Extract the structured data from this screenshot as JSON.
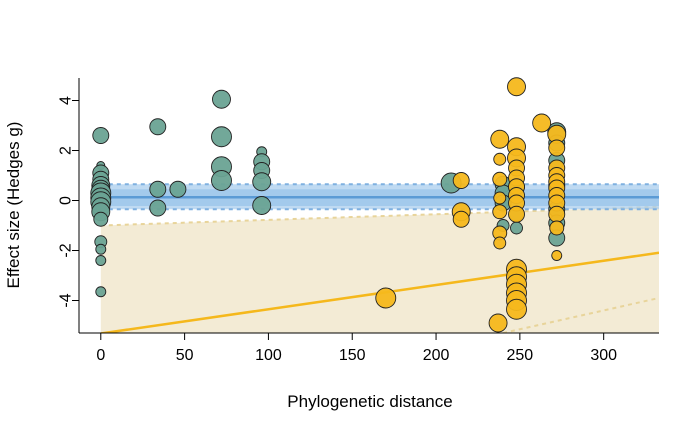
{
  "chart_data": {
    "type": "scatter",
    "xlabel": "Phylogenetic distance",
    "ylabel": "Effect size (Hedges g)",
    "xlim": [
      -13,
      333
    ],
    "ylim": [
      -5.3,
      4.9
    ],
    "x_ticks": [
      0,
      50,
      100,
      150,
      200,
      250,
      300
    ],
    "y_ticks": [
      -4,
      -2,
      0,
      2,
      4
    ],
    "colors": {
      "teal": "#6aa394",
      "gold": "#f5b81c",
      "blue_fit": "#5b9bd5",
      "blue_band": "#a9cdee",
      "gold_fit": "#f5b81c",
      "gold_band": "#f3ebd5"
    },
    "fits": [
      {
        "color": "blue",
        "slope": 0.0,
        "intercept": 0.13,
        "ci_lower": -0.35,
        "ci_upper": 0.65,
        "ci_band": [
          -0.22,
          0.45
        ]
      },
      {
        "color": "gold",
        "slope": 0.0097,
        "intercept": -5.32,
        "ci_upper_start": -1.0,
        "ci_upper_end": -0.25,
        "ci_lower_line": [
          [
            240,
            -5.3
          ],
          [
            333,
            -3.9
          ]
        ]
      }
    ],
    "series": [
      {
        "color": "teal",
        "points": [
          {
            "x": 0,
            "y": 2.6,
            "r": 8
          },
          {
            "x": 0,
            "y": 1.4,
            "r": 4
          },
          {
            "x": 0,
            "y": 1.1,
            "r": 8
          },
          {
            "x": 0,
            "y": 0.85,
            "r": 8
          },
          {
            "x": 0,
            "y": 0.6,
            "r": 9
          },
          {
            "x": 0,
            "y": 0.45,
            "r": 9
          },
          {
            "x": 0,
            "y": 0.3,
            "r": 10
          },
          {
            "x": 0,
            "y": 0.1,
            "r": 10
          },
          {
            "x": 0,
            "y": -0.05,
            "r": 10
          },
          {
            "x": 0,
            "y": -0.25,
            "r": 9
          },
          {
            "x": 0,
            "y": -0.45,
            "r": 9
          },
          {
            "x": 0,
            "y": -0.75,
            "r": 7
          },
          {
            "x": 0,
            "y": -1.65,
            "r": 6
          },
          {
            "x": 0,
            "y": -1.95,
            "r": 5
          },
          {
            "x": 0,
            "y": -2.4,
            "r": 5
          },
          {
            "x": 0,
            "y": -3.65,
            "r": 5
          },
          {
            "x": 34,
            "y": 2.95,
            "r": 8
          },
          {
            "x": 34,
            "y": 0.45,
            "r": 8
          },
          {
            "x": 34,
            "y": -0.3,
            "r": 8
          },
          {
            "x": 46,
            "y": 0.45,
            "r": 8
          },
          {
            "x": 72,
            "y": 4.05,
            "r": 9
          },
          {
            "x": 72,
            "y": 2.55,
            "r": 10
          },
          {
            "x": 72,
            "y": 1.35,
            "r": 10
          },
          {
            "x": 72,
            "y": 0.8,
            "r": 10
          },
          {
            "x": 96,
            "y": 1.95,
            "r": 5
          },
          {
            "x": 96,
            "y": 1.55,
            "r": 8
          },
          {
            "x": 96,
            "y": 1.2,
            "r": 8
          },
          {
            "x": 96,
            "y": 0.75,
            "r": 9
          },
          {
            "x": 96,
            "y": -0.2,
            "r": 9
          },
          {
            "x": 209,
            "y": 0.7,
            "r": 10
          },
          {
            "x": 240,
            "y": 0.65,
            "r": 8
          },
          {
            "x": 240,
            "y": 0.3,
            "r": 8
          },
          {
            "x": 240,
            "y": -0.1,
            "r": 8
          },
          {
            "x": 240,
            "y": -1.0,
            "r": 6
          },
          {
            "x": 248,
            "y": 0.55,
            "r": 8
          },
          {
            "x": 248,
            "y": -0.55,
            "r": 7
          },
          {
            "x": 248,
            "y": -1.1,
            "r": 6
          },
          {
            "x": 272,
            "y": 2.75,
            "r": 9
          },
          {
            "x": 272,
            "y": 2.3,
            "r": 8
          },
          {
            "x": 272,
            "y": 1.6,
            "r": 8
          },
          {
            "x": 272,
            "y": 0.6,
            "r": 8
          },
          {
            "x": 272,
            "y": -0.35,
            "r": 8
          },
          {
            "x": 272,
            "y": -0.9,
            "r": 8
          },
          {
            "x": 272,
            "y": -1.5,
            "r": 8
          }
        ]
      },
      {
        "color": "gold",
        "points": [
          {
            "x": 215,
            "y": 0.8,
            "r": 8
          },
          {
            "x": 215,
            "y": -0.45,
            "r": 9
          },
          {
            "x": 215,
            "y": -0.75,
            "r": 8
          },
          {
            "x": 170,
            "y": -3.9,
            "r": 10
          },
          {
            "x": 238,
            "y": 2.45,
            "r": 9
          },
          {
            "x": 238,
            "y": 1.65,
            "r": 6
          },
          {
            "x": 238,
            "y": 0.85,
            "r": 7
          },
          {
            "x": 238,
            "y": 0.1,
            "r": 6
          },
          {
            "x": 238,
            "y": -0.45,
            "r": 7
          },
          {
            "x": 238,
            "y": -1.3,
            "r": 7
          },
          {
            "x": 238,
            "y": -1.7,
            "r": 6
          },
          {
            "x": 237,
            "y": -4.9,
            "r": 9
          },
          {
            "x": 248,
            "y": 4.55,
            "r": 9
          },
          {
            "x": 248,
            "y": 2.15,
            "r": 9
          },
          {
            "x": 248,
            "y": 1.7,
            "r": 9
          },
          {
            "x": 248,
            "y": 1.3,
            "r": 8
          },
          {
            "x": 248,
            "y": 0.9,
            "r": 8
          },
          {
            "x": 248,
            "y": 0.55,
            "r": 8
          },
          {
            "x": 248,
            "y": 0.2,
            "r": 8
          },
          {
            "x": 248,
            "y": -0.1,
            "r": 8
          },
          {
            "x": 248,
            "y": -0.55,
            "r": 8
          },
          {
            "x": 248,
            "y": -2.75,
            "r": 10
          },
          {
            "x": 248,
            "y": -3.05,
            "r": 10
          },
          {
            "x": 248,
            "y": -3.35,
            "r": 10
          },
          {
            "x": 248,
            "y": -3.7,
            "r": 10
          },
          {
            "x": 248,
            "y": -4.0,
            "r": 10
          },
          {
            "x": 248,
            "y": -4.35,
            "r": 10
          },
          {
            "x": 263,
            "y": 3.1,
            "r": 9
          },
          {
            "x": 272,
            "y": 2.65,
            "r": 9
          },
          {
            "x": 272,
            "y": 2.1,
            "r": 8
          },
          {
            "x": 272,
            "y": 1.3,
            "r": 8
          },
          {
            "x": 272,
            "y": 1.0,
            "r": 8
          },
          {
            "x": 272,
            "y": 0.75,
            "r": 8
          },
          {
            "x": 272,
            "y": 0.5,
            "r": 8
          },
          {
            "x": 272,
            "y": 0.2,
            "r": 8
          },
          {
            "x": 272,
            "y": -0.1,
            "r": 8
          },
          {
            "x": 272,
            "y": -0.55,
            "r": 8
          },
          {
            "x": 272,
            "y": -1.1,
            "r": 7
          },
          {
            "x": 272,
            "y": -2.2,
            "r": 5
          }
        ]
      }
    ]
  }
}
